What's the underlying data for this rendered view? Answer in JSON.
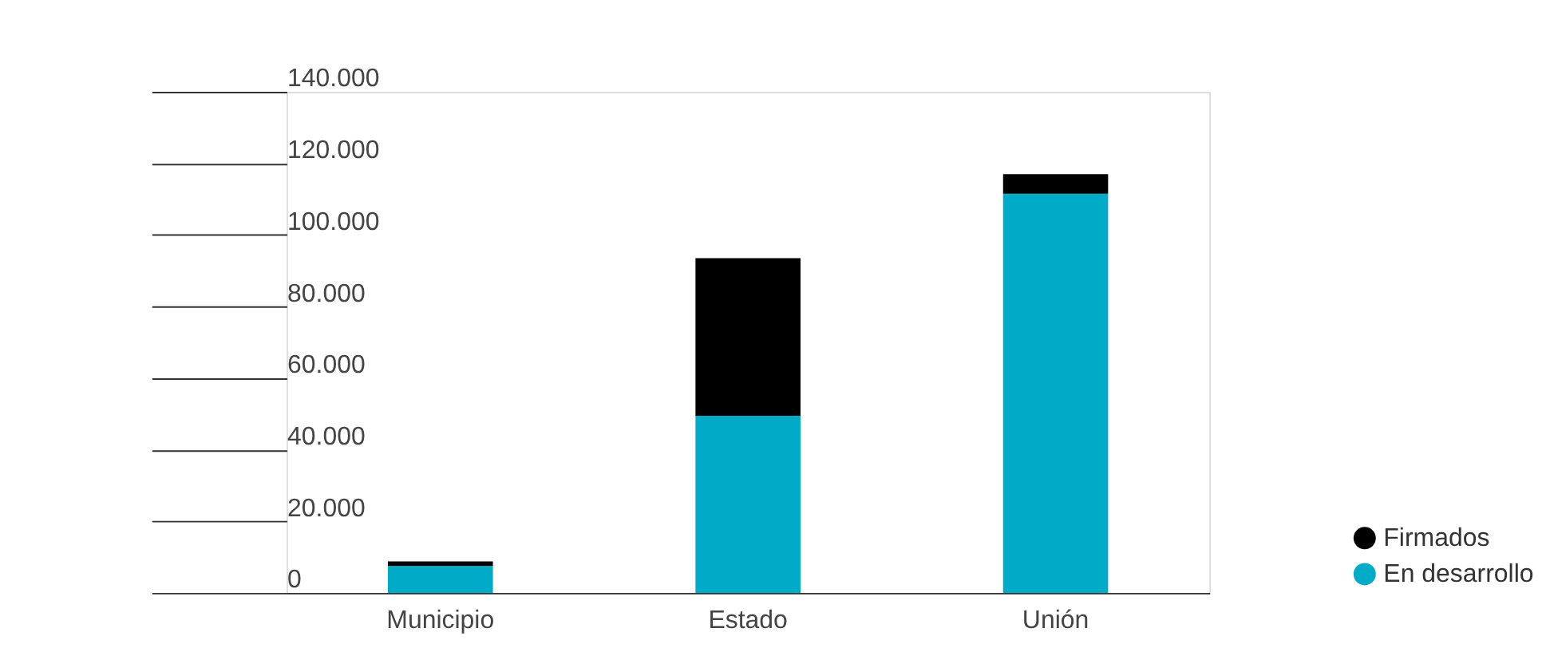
{
  "chart_data": {
    "type": "bar",
    "stacked": true,
    "categories": [
      "Municipio",
      "Estado",
      "Unión"
    ],
    "series": [
      {
        "name": "En desarrollo",
        "color": "#00abc8",
        "values": [
          7500,
          49500,
          111500
        ]
      },
      {
        "name": "Firmados",
        "color": "#000000",
        "values": [
          1300,
          44000,
          5500
        ]
      }
    ],
    "ylim": [
      0,
      140000
    ],
    "yticks": [
      {
        "value": 0,
        "label": "0"
      },
      {
        "value": 20000,
        "label": "20.000"
      },
      {
        "value": 40000,
        "label": "40.000"
      },
      {
        "value": 60000,
        "label": "60.000"
      },
      {
        "value": 80000,
        "label": "80.000"
      },
      {
        "value": 100000,
        "label": "100.000"
      },
      {
        "value": 120000,
        "label": "120.000"
      },
      {
        "value": 140000,
        "label": "140.000"
      }
    ],
    "grid": false,
    "legend": "bottom right"
  }
}
